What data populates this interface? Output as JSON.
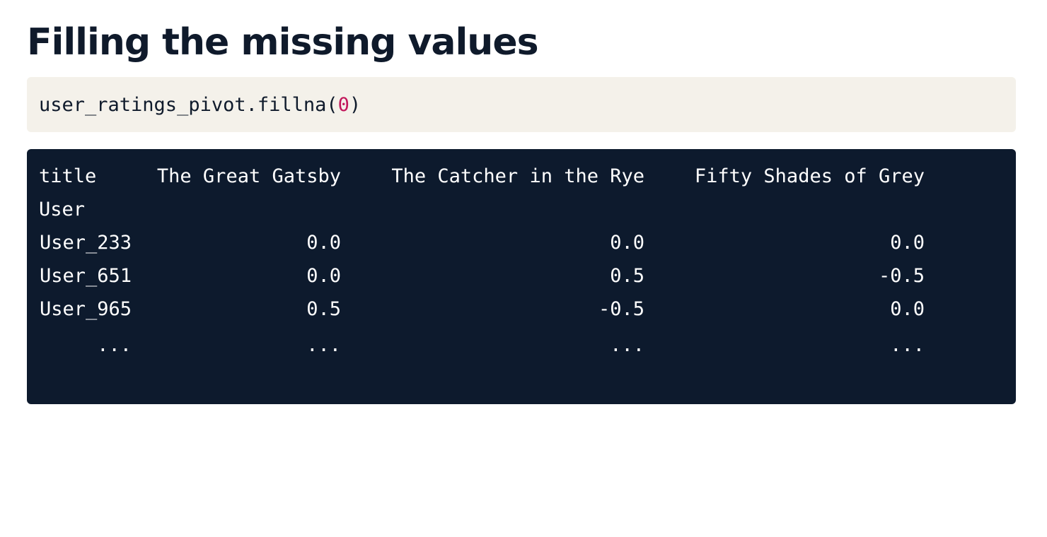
{
  "heading": "Filling the missing values",
  "code": {
    "prefix": "user_ratings_pivot.fillna(",
    "arg": "0",
    "suffix": ")"
  },
  "colors": {
    "code_bg": "#f4f1ea",
    "output_bg": "#0d1a2d",
    "number_accent": "#c2185b",
    "heading": "#0f1a2b"
  },
  "table": {
    "columns_label": "title",
    "index_label": "User",
    "columns": [
      "The Great Gatsby",
      "The Catcher in the Rye",
      "Fifty Shades of Grey"
    ],
    "rows": [
      {
        "index": "User_233",
        "values": [
          "0.0",
          "0.0",
          "0.0"
        ]
      },
      {
        "index": "User_651",
        "values": [
          "0.0",
          "0.5",
          "-0.5"
        ]
      },
      {
        "index": "User_965",
        "values": [
          "0.5",
          "-0.5",
          "0.0"
        ]
      },
      {
        "index": "...",
        "values": [
          "...",
          "...",
          "..."
        ]
      }
    ]
  }
}
